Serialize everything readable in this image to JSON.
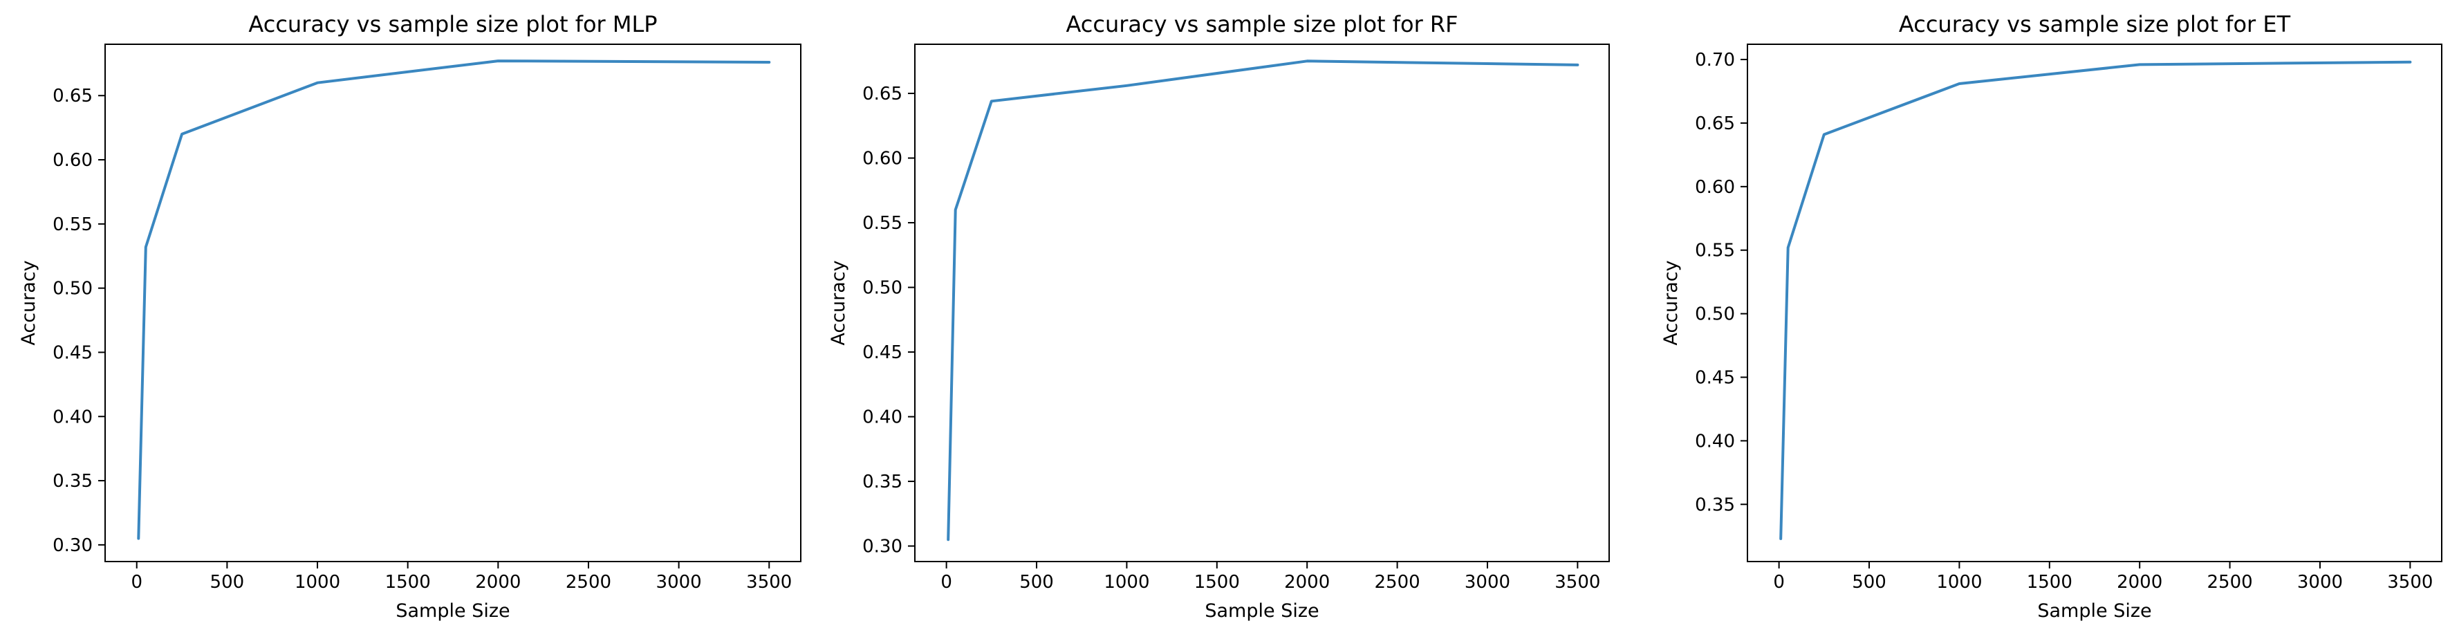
{
  "colors": {
    "line": "#3a87c0",
    "frame": "#000000",
    "background": "#ffffff"
  },
  "chart_data": [
    {
      "type": "line",
      "title": "Accuracy vs sample size plot for MLP",
      "xlabel": "Sample Size",
      "ylabel": "Accuracy",
      "xlim": [
        -175,
        3675
      ],
      "ylim": [
        0.287,
        0.69
      ],
      "xticks": [
        0,
        500,
        1000,
        1500,
        2000,
        2500,
        3000,
        3500
      ],
      "xtick_labels": [
        "0",
        "500",
        "1000",
        "1500",
        "2000",
        "2500",
        "3000",
        "3500"
      ],
      "yticks": [
        0.3,
        0.35,
        0.4,
        0.45,
        0.5,
        0.55,
        0.6,
        0.65
      ],
      "ytick_labels": [
        "0.30",
        "0.35",
        "0.40",
        "0.45",
        "0.50",
        "0.55",
        "0.60",
        "0.65"
      ],
      "grid": false,
      "series": [
        {
          "x": [
            10,
            50,
            250,
            1000,
            2000,
            3500
          ],
          "y": [
            0.305,
            0.532,
            0.62,
            0.66,
            0.677,
            0.676
          ]
        }
      ]
    },
    {
      "type": "line",
      "title": "Accuracy vs sample size plot for RF",
      "xlabel": "Sample Size",
      "ylabel": "Accuracy",
      "xlim": [
        -175,
        3675
      ],
      "ylim": [
        0.288,
        0.688
      ],
      "xticks": [
        0,
        500,
        1000,
        1500,
        2000,
        2500,
        3000,
        3500
      ],
      "xtick_labels": [
        "0",
        "500",
        "1000",
        "1500",
        "2000",
        "2500",
        "3000",
        "3500"
      ],
      "yticks": [
        0.3,
        0.35,
        0.4,
        0.45,
        0.5,
        0.55,
        0.6,
        0.65
      ],
      "ytick_labels": [
        "0.30",
        "0.35",
        "0.40",
        "0.45",
        "0.50",
        "0.55",
        "0.60",
        "0.65"
      ],
      "grid": false,
      "series": [
        {
          "x": [
            10,
            50,
            250,
            1000,
            2000,
            3500
          ],
          "y": [
            0.305,
            0.56,
            0.644,
            0.656,
            0.675,
            0.672
          ]
        }
      ]
    },
    {
      "type": "line",
      "title": "Accuracy vs sample size plot for ET",
      "xlabel": "Sample Size",
      "ylabel": "Accuracy",
      "xlim": [
        -175,
        3675
      ],
      "ylim": [
        0.305,
        0.712
      ],
      "xticks": [
        0,
        500,
        1000,
        1500,
        2000,
        2500,
        3000,
        3500
      ],
      "xtick_labels": [
        "0",
        "500",
        "1000",
        "1500",
        "2000",
        "2500",
        "3000",
        "3500"
      ],
      "yticks": [
        0.35,
        0.4,
        0.45,
        0.5,
        0.55,
        0.6,
        0.65,
        0.7
      ],
      "ytick_labels": [
        "0.35",
        "0.40",
        "0.45",
        "0.50",
        "0.55",
        "0.60",
        "0.65",
        "0.70"
      ],
      "grid": false,
      "series": [
        {
          "x": [
            10,
            50,
            250,
            1000,
            2000,
            3500
          ],
          "y": [
            0.323,
            0.552,
            0.641,
            0.681,
            0.696,
            0.698
          ]
        }
      ]
    }
  ]
}
